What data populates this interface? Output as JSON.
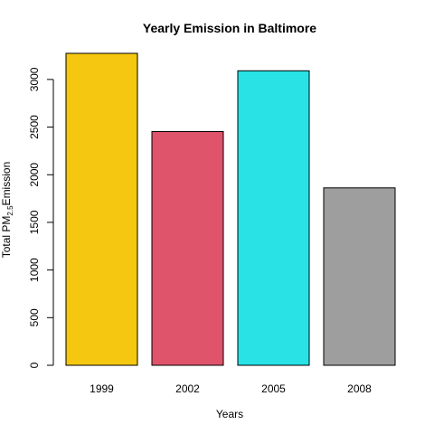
{
  "chart_data": {
    "type": "bar",
    "title": "Yearly Emission in Baltimore",
    "xlabel": "Years",
    "ylabel_parts": {
      "before": "Total PM",
      "subscript": "2.5",
      "after": "Emission"
    },
    "categories": [
      "1999",
      "2002",
      "2005",
      "2008"
    ],
    "values": [
      3274,
      2453,
      3091,
      1862
    ],
    "bar_colors": [
      "#F5C710",
      "#DF536B",
      "#28E2E5",
      "#9E9E9E"
    ],
    "bar_outline_color": "#000000",
    "ylim": [
      0,
      3274
    ],
    "yticks": [
      0,
      500,
      1000,
      1500,
      2000,
      2500,
      3000
    ],
    "ytick_labels": [
      "0",
      "500",
      "1000",
      "1500",
      "2000",
      "2500",
      "3000"
    ],
    "grid": false,
    "legend": "none"
  }
}
